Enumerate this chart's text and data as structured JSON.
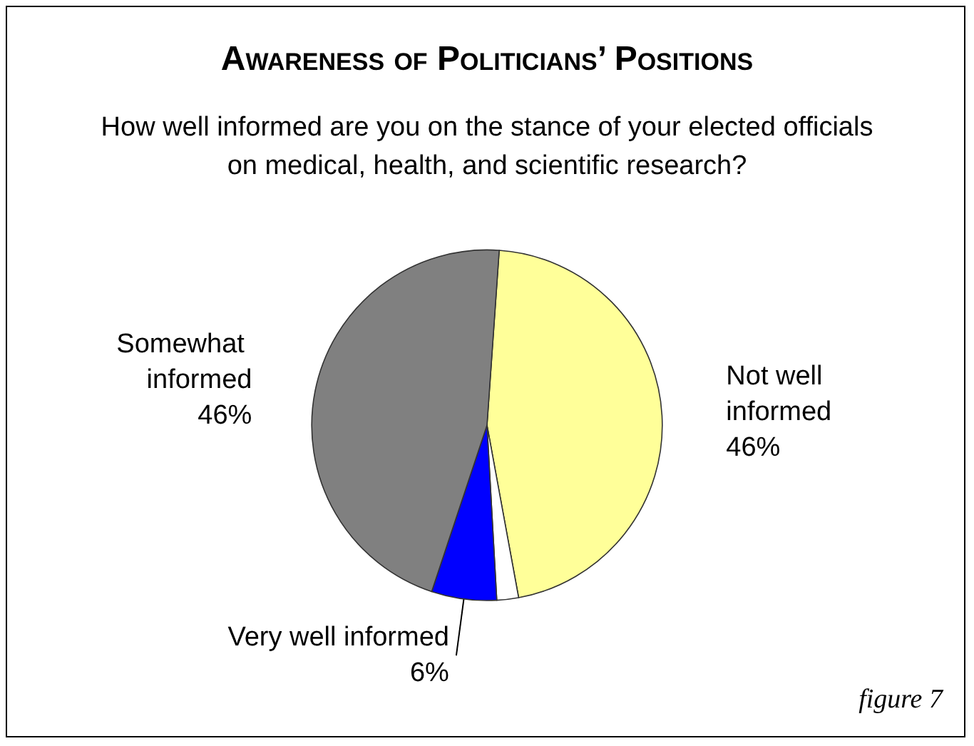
{
  "chart_data": {
    "type": "pie",
    "title": "Awareness of Politicians’ Positions",
    "subtitle": "How well informed are you on the stance of your elected officials on medical, health, and scientific research?",
    "categories": [
      "Not well informed",
      null,
      "Very well informed",
      "Somewhat informed"
    ],
    "values": [
      46,
      2,
      6,
      46
    ],
    "value_labels": [
      "46%",
      null,
      "6%",
      "46%"
    ],
    "colors": [
      "#ffff99",
      "#ffffff",
      "#0000ff",
      "#808080"
    ],
    "annotations": [
      "figure 7"
    ]
  }
}
